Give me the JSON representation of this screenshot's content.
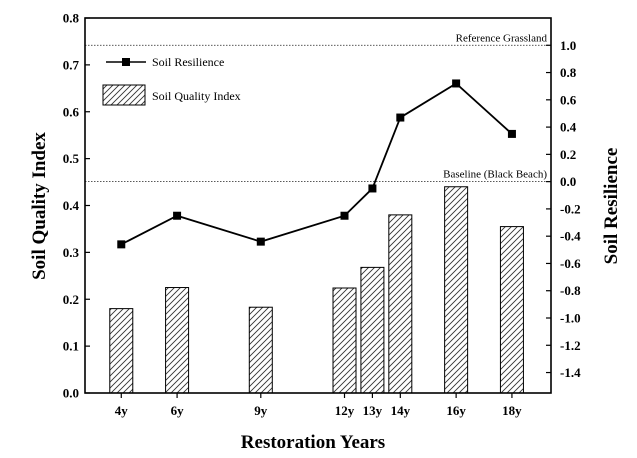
{
  "chart_data": {
    "type": "bar",
    "xlabel": "Restoration Years",
    "ylabel_left": "Soil Quality Index",
    "ylabel_right": "Soil Resilience",
    "ylim_left": [
      0,
      0.8
    ],
    "yticks_left": [
      0.0,
      0.1,
      0.2,
      0.3,
      0.4,
      0.5,
      0.6,
      0.7,
      0.8
    ],
    "ylim_right": [
      -1.55,
      1.2
    ],
    "yticks_right": [
      -1.4,
      -1.2,
      -1.0,
      -0.8,
      -0.6,
      -0.4,
      -0.2,
      0.0,
      0.2,
      0.4,
      0.6,
      0.8,
      1.0
    ],
    "x_ticks": [
      {
        "label": "4y",
        "year": 4
      },
      {
        "label": "6y",
        "year": 6
      },
      {
        "label": "9y",
        "year": 9
      },
      {
        "label": "12y",
        "year": 12
      },
      {
        "label": "13y",
        "year": 13
      },
      {
        "label": "14y",
        "year": 14
      },
      {
        "label": "16y",
        "year": 16
      },
      {
        "label": "18y",
        "year": 18
      }
    ],
    "xlim": [
      2.7,
      19.4
    ],
    "grid": false,
    "legend_position": "top-left",
    "series": [
      {
        "name": "Soil Quality Index",
        "type": "bar",
        "axis": "left",
        "points": [
          {
            "year": 4,
            "value": 0.18
          },
          {
            "year": 6,
            "value": 0.225
          },
          {
            "year": 9,
            "value": 0.183
          },
          {
            "year": 12,
            "value": 0.224
          },
          {
            "year": 13,
            "value": 0.268
          },
          {
            "year": 14,
            "value": 0.38
          },
          {
            "year": 16,
            "value": 0.44
          },
          {
            "year": 18,
            "value": 0.355
          }
        ]
      },
      {
        "name": "Soil Resilience",
        "type": "line",
        "axis": "right",
        "points": [
          {
            "year": 4,
            "value": -0.46
          },
          {
            "year": 6,
            "value": -0.25
          },
          {
            "year": 9,
            "value": -0.44
          },
          {
            "year": 12,
            "value": -0.25
          },
          {
            "year": 13,
            "value": -0.05
          },
          {
            "year": 14,
            "value": 0.47
          },
          {
            "year": 16,
            "value": 0.72
          },
          {
            "year": 18,
            "value": 0.35
          }
        ]
      }
    ],
    "reference_lines": [
      {
        "label": "Reference Grassland",
        "value": 1.0,
        "axis": "right"
      },
      {
        "label": "Baseline (Black Beach)",
        "value": 0.0,
        "axis": "right"
      }
    ]
  }
}
